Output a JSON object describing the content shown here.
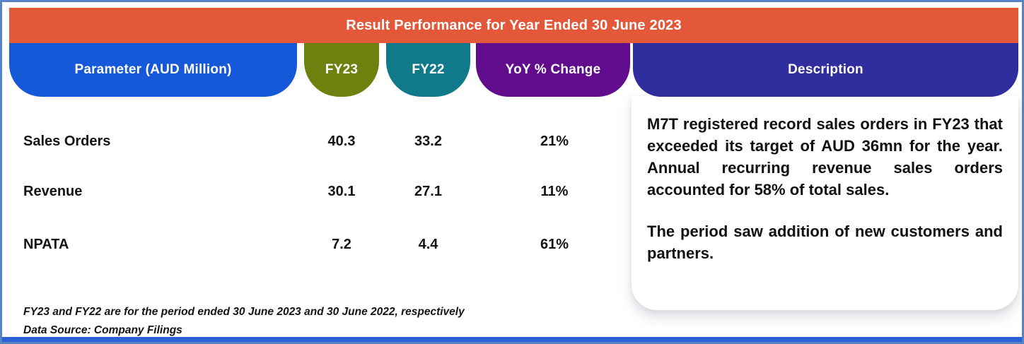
{
  "header": {
    "title": "Result Performance for Year Ended 30 June 2023"
  },
  "columns": {
    "parameter": "Parameter (AUD Million)",
    "fy23": "FY23",
    "fy22": "FY22",
    "yoy": "YoY % Change",
    "description": "Description"
  },
  "table": {
    "rows": [
      {
        "parameter": "Sales Orders",
        "fy23": "40.3",
        "fy22": "33.2",
        "yoy": "21%"
      },
      {
        "parameter": "Revenue",
        "fy23": "30.1",
        "fy22": "27.1",
        "yoy": "11%"
      },
      {
        "parameter": "NPATA",
        "fy23": "7.2",
        "fy22": "4.4",
        "yoy": "61%"
      }
    ]
  },
  "description": {
    "paragraph1": "M7T registered record sales orders in FY23 that exceeded its target of AUD 36mn for the year. Annual recurring revenue sales orders accounted for 58% of total sales.",
    "paragraph2": "The period saw addition of new customers and partners."
  },
  "footnotes": {
    "line1": "FY23 and FY22 are for the period ended 30 June 2023 and 30 June 2022, respectively",
    "line2": "Data Source: Company Filings"
  },
  "colors": {
    "title_bar": "#E4583A",
    "parameter_pill": "#1558D8",
    "fy23_pill": "#70800F",
    "fy22_pill": "#107A8A",
    "yoy_pill": "#600C8C",
    "description_pill": "#302D9E",
    "outer_border": "#5583C6",
    "bottom_bar": "#2B61D6",
    "body_text": "#141414"
  },
  "chart_data": {
    "type": "table",
    "title": "Result Performance for Year Ended 30 June 2023",
    "columns": [
      "Parameter (AUD Million)",
      "FY23",
      "FY22",
      "YoY % Change"
    ],
    "rows": [
      [
        "Sales Orders",
        40.3,
        33.2,
        "21%"
      ],
      [
        "Revenue",
        30.1,
        27.1,
        "11%"
      ],
      [
        "NPATA",
        7.2,
        4.4,
        "61%"
      ]
    ],
    "description": [
      "M7T registered record sales orders in FY23 that exceeded its target of AUD 36mn for the year. Annual recurring revenue sales orders accounted for 58% of total sales.",
      "The period saw addition of new customers and partners."
    ],
    "footnotes": [
      "FY23 and FY22 are for the period ended 30 June 2023 and 30 June 2022, respectively",
      "Data Source: Company Filings"
    ]
  }
}
